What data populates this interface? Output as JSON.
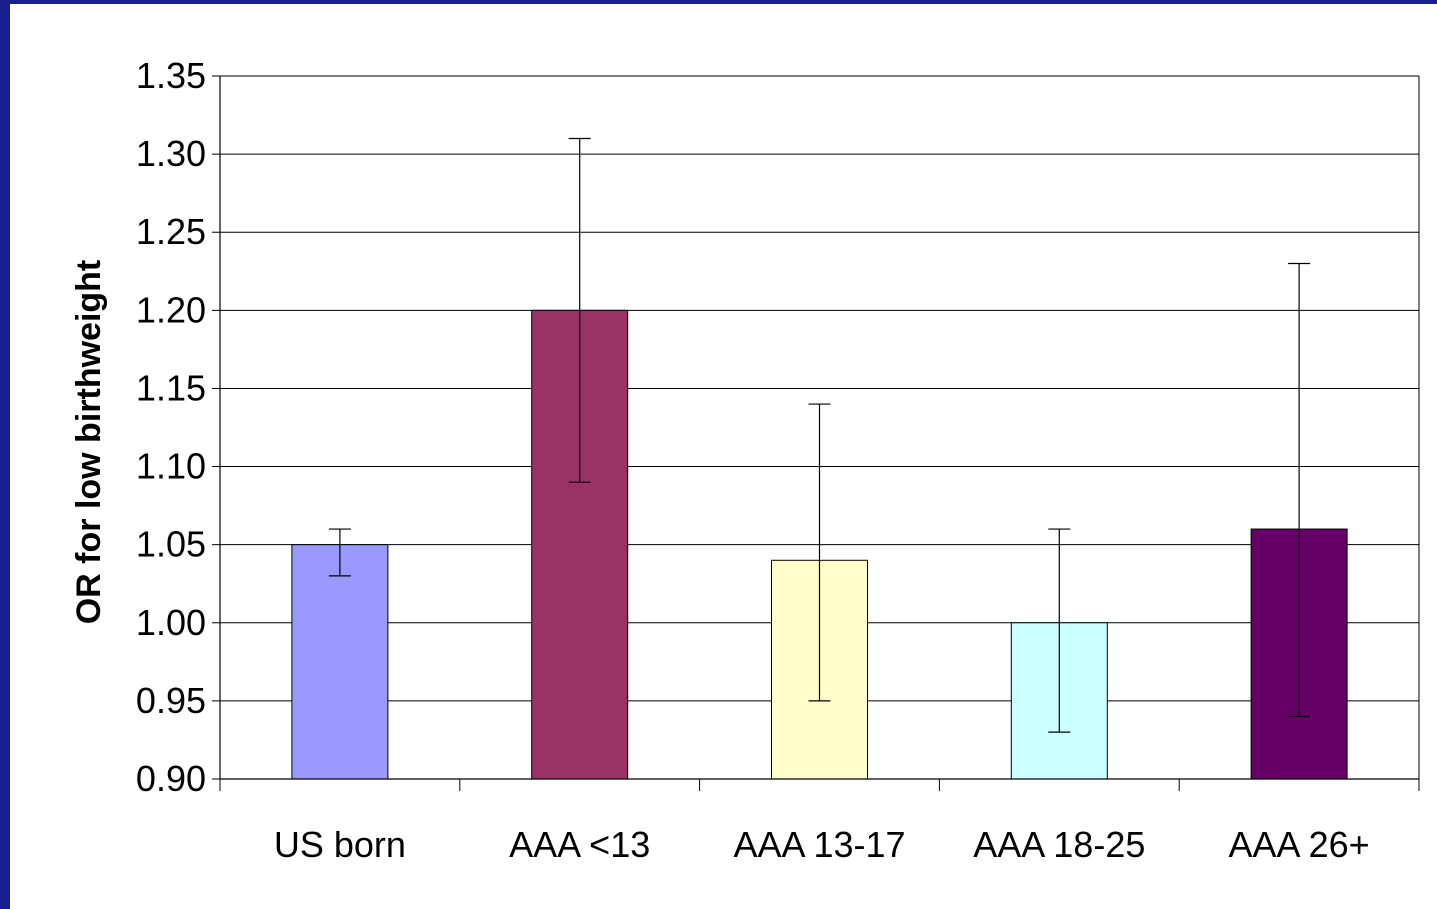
{
  "chart_data": {
    "type": "bar",
    "title": "",
    "xlabel": "",
    "ylabel": "OR for low birthweight",
    "categories": [
      "US born",
      "AAA <13",
      "AAA 13-17",
      "AAA 18-25",
      "AAA 26+"
    ],
    "values": [
      1.05,
      1.2,
      1.04,
      1.0,
      1.06
    ],
    "error_low": [
      1.03,
      1.09,
      0.95,
      0.93,
      0.94
    ],
    "error_high": [
      1.06,
      1.31,
      1.14,
      1.06,
      1.23
    ],
    "colors": [
      "#9999ff",
      "#993366",
      "#ffffcc",
      "#ccffff",
      "#660066"
    ],
    "ylim": [
      0.9,
      1.35
    ],
    "yticks": [
      "0.90",
      "0.95",
      "1.00",
      "1.05",
      "1.10",
      "1.15",
      "1.20",
      "1.25",
      "1.30",
      "1.35"
    ],
    "grid": true,
    "legend": "none"
  }
}
